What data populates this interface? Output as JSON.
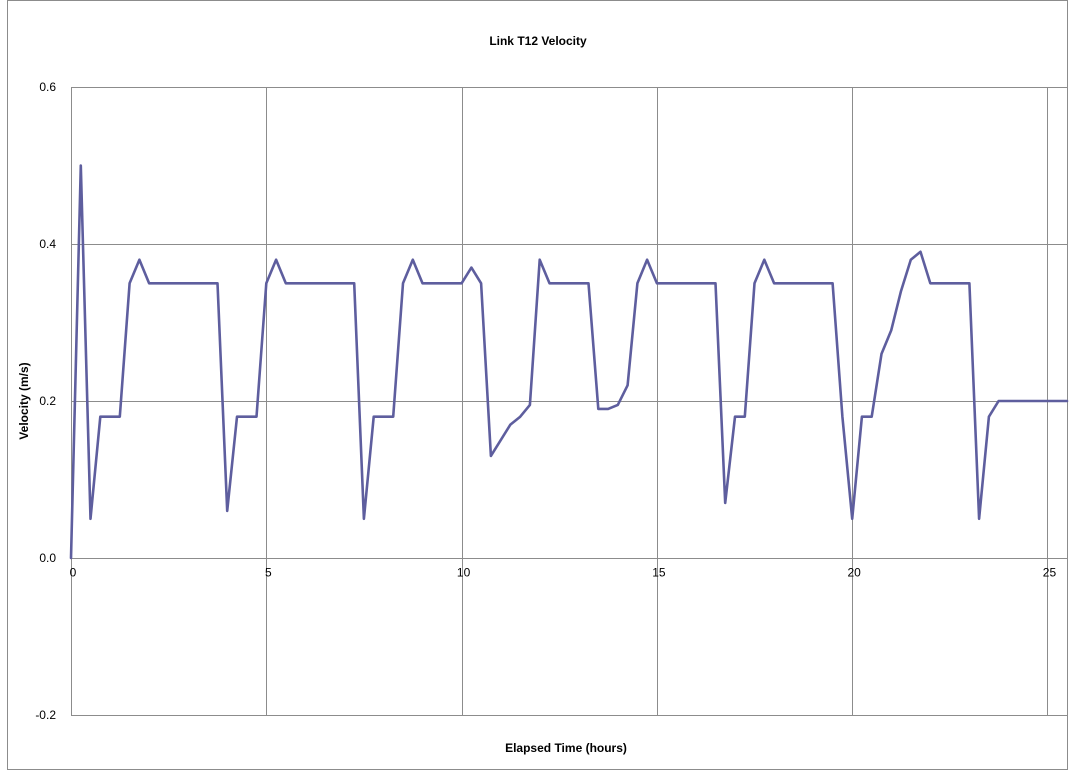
{
  "chart_data": {
    "type": "line",
    "title": "Link T12 Velocity",
    "xlabel": "Elapsed Time (hours)",
    "ylabel": "Velocity (m/s)",
    "xlim": [
      0,
      25.5
    ],
    "ylim": [
      -0.2,
      0.6
    ],
    "x_ticks": [
      0,
      5,
      10,
      15,
      20,
      25
    ],
    "y_ticks": [
      -0.2,
      0.0,
      0.2,
      0.4,
      0.6
    ],
    "x_tick_labels": [
      "0",
      "5",
      "10",
      "15",
      "20",
      "25"
    ],
    "y_tick_labels": [
      "-0.2",
      "0.0",
      "0.2",
      "0.4",
      "0.6"
    ],
    "grid": true,
    "legend": "none",
    "series": [
      {
        "color": "#5e5e9e",
        "x": [
          0.0,
          0.25,
          0.5,
          0.75,
          1.25,
          1.5,
          1.75,
          2.0,
          3.75,
          4.0,
          4.25,
          4.75,
          5.0,
          5.25,
          5.5,
          7.25,
          7.5,
          7.75,
          8.25,
          8.5,
          8.75,
          9.0,
          10.0,
          10.25,
          10.5,
          10.75,
          11.25,
          11.5,
          11.75,
          12.0,
          12.25,
          13.25,
          13.5,
          13.75,
          14.0,
          14.25,
          14.5,
          14.75,
          15.0,
          16.5,
          16.75,
          17.0,
          17.25,
          17.5,
          17.75,
          18.0,
          19.5,
          19.75,
          20.0,
          20.25,
          20.5,
          20.75,
          21.0,
          21.25,
          21.5,
          21.75,
          22.0,
          23.0,
          23.25,
          23.5,
          23.75,
          24.0,
          25.5
        ],
        "y": [
          0.0,
          0.5,
          0.05,
          0.18,
          0.18,
          0.35,
          0.38,
          0.35,
          0.35,
          0.06,
          0.18,
          0.18,
          0.35,
          0.38,
          0.35,
          0.35,
          0.05,
          0.18,
          0.18,
          0.35,
          0.38,
          0.35,
          0.35,
          0.37,
          0.35,
          0.13,
          0.17,
          0.18,
          0.195,
          0.38,
          0.35,
          0.35,
          0.19,
          0.19,
          0.195,
          0.22,
          0.35,
          0.38,
          0.35,
          0.35,
          0.07,
          0.18,
          0.18,
          0.35,
          0.38,
          0.35,
          0.35,
          0.18,
          0.05,
          0.18,
          0.18,
          0.26,
          0.29,
          0.34,
          0.38,
          0.39,
          0.35,
          0.35,
          0.05,
          0.18,
          0.2,
          0.2,
          0.2
        ]
      }
    ]
  }
}
